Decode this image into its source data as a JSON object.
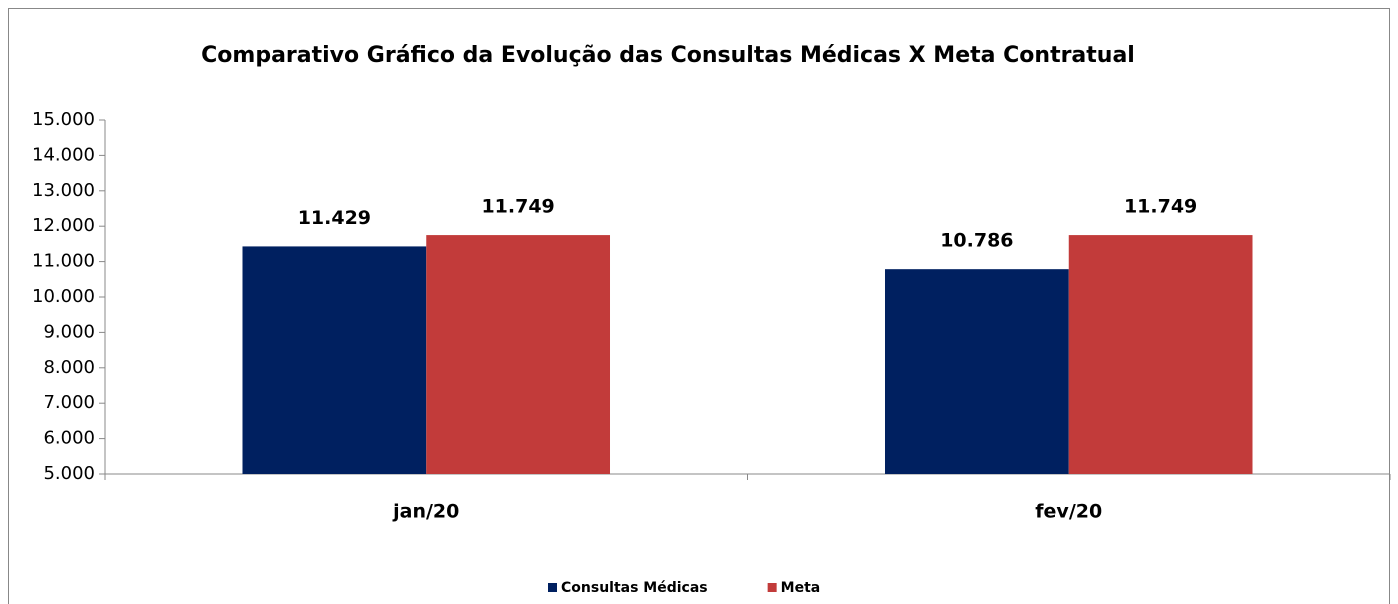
{
  "chart_data": {
    "type": "bar",
    "title": "Comparativo Gráfico da Evolução das Consultas Médicas X Meta Contratual",
    "categories": [
      "jan/20",
      "fev/20"
    ],
    "series": [
      {
        "name": "Consultas Médicas",
        "color": "#002060",
        "values": [
          11429,
          10786
        ],
        "value_labels": [
          "11.429",
          "10.786"
        ]
      },
      {
        "name": "Meta",
        "color": "#c23b3a",
        "values": [
          11749,
          11749
        ],
        "value_labels": [
          "11.749",
          "11.749"
        ]
      }
    ],
    "ylim": [
      5000,
      15000
    ],
    "yticks": [
      {
        "value": 5000,
        "label": "5.000"
      },
      {
        "value": 6000,
        "label": "6.000"
      },
      {
        "value": 7000,
        "label": "7.000"
      },
      {
        "value": 8000,
        "label": "8.000"
      },
      {
        "value": 9000,
        "label": "9.000"
      },
      {
        "value": 10000,
        "label": "10.000"
      },
      {
        "value": 11000,
        "label": "11.000"
      },
      {
        "value": 12000,
        "label": "12.000"
      },
      {
        "value": 13000,
        "label": "13.000"
      },
      {
        "value": 14000,
        "label": "14.000"
      },
      {
        "value": 15000,
        "label": "15.000"
      }
    ],
    "grid": false,
    "legend": "bottom"
  }
}
